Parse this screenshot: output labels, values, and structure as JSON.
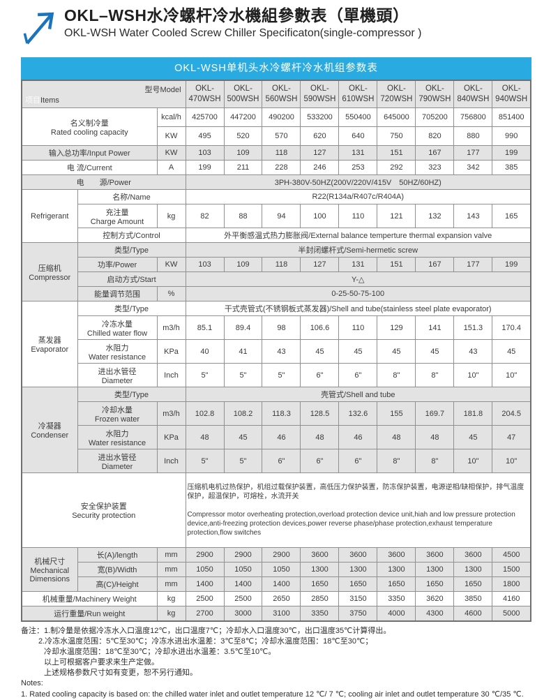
{
  "page": {
    "title_zh": "OKL–WSH水冷螺杆冷水機組參數表（單機頭）",
    "title_en": "OKL-WSH Water Cooled Screw Chiller Specificaton(single-compressor )"
  },
  "banner": {
    "text": "OKL-WSH单机头水冷螺杆冷水机组参数表"
  },
  "colors": {
    "banner_blue": "#29abe2",
    "arrow_blue": "#1b75bc",
    "band_gray": "#e3e3e3",
    "border_gray": "#8f8f8f"
  },
  "icons": {
    "header_icon": "arrow-up-right-icon"
  },
  "table": {
    "corner": {
      "items_zh": "项目",
      "items_en": "Items",
      "model": "型号Model"
    },
    "models": [
      "OKL-\n470WSH",
      "OKL-\n500WSH",
      "OKL-\n560WSH",
      "OKL-\n590WSH",
      "OKL-\n610WSH",
      "OKL-\n720WSH",
      "OKL-\n790WSH",
      "OKL-\n840WSH",
      "OKL-\n940WSH"
    ],
    "rated": {
      "label": "名义制冷量\nRated cooling capacity",
      "unit1": "kcal/h",
      "unit2": "KW",
      "kcal": [
        "425700",
        "447200",
        "490200",
        "533200",
        "550400",
        "645000",
        "705200",
        "756800",
        "851400"
      ],
      "kw": [
        "495",
        "520",
        "570",
        "620",
        "640",
        "750",
        "820",
        "880",
        "990"
      ]
    },
    "input_power": {
      "label": "输入总功率/Input Power",
      "unit": "KW",
      "values": [
        "103",
        "109",
        "118",
        "127",
        "131",
        "151",
        "167",
        "177",
        "199"
      ]
    },
    "current": {
      "label": "电  流/Current",
      "unit": "A",
      "values": [
        "199",
        "211",
        "228",
        "246",
        "253",
        "292",
        "323",
        "342",
        "385"
      ]
    },
    "power_supply": {
      "label": "电　　源/Power",
      "value": "3PH-380V-50HZ(200V/220V/415V　50HZ/60HZ)"
    },
    "refrigerant": {
      "group": "Refrigerant",
      "name": {
        "label": "名称/Name",
        "value": "R22(R134a/R407c/R404A)"
      },
      "charge": {
        "label": "充注量\nCharge Amount",
        "unit": "kg",
        "values": [
          "82",
          "88",
          "94",
          "100",
          "110",
          "121",
          "132",
          "143",
          "165"
        ]
      },
      "control": {
        "label": "控制方式/Control",
        "value": "外平衡感温式热力膨胀阀/External balance temperture thermal expansion valve"
      }
    },
    "compressor": {
      "group": "压缩机\nCompressor",
      "type": {
        "label": "类型/Type",
        "value": "半封闭螺杆式/Semi-hermetic screw"
      },
      "power": {
        "label": "功率/Power",
        "unit": "KW",
        "values": [
          "103",
          "109",
          "118",
          "127",
          "131",
          "151",
          "167",
          "177",
          "199"
        ]
      },
      "start": {
        "label": "启动方式/Start",
        "value": "Y-△"
      },
      "energy": {
        "label": "能量调节范围",
        "unit": "%",
        "value": "0-25-50-75-100"
      }
    },
    "evaporator": {
      "group": "蒸发器\nEvaporator",
      "type": {
        "label": "类型/Type",
        "value": "干式壳管式(不锈钢板式蒸发器)/Shell and tube(stainless steel plate evaporator)"
      },
      "flow": {
        "label": "冷冻水量\nChilled water flow",
        "unit": "m3/h",
        "values": [
          "85.1",
          "89.4",
          "98",
          "106.6",
          "110",
          "129",
          "141",
          "151.3",
          "170.4"
        ]
      },
      "resistance": {
        "label": "水阻力\nWater resistance",
        "unit": "KPa",
        "values": [
          "40",
          "41",
          "43",
          "45",
          "45",
          "45",
          "45",
          "43",
          "45"
        ]
      },
      "diameter": {
        "label": "进出水管径\nDiameter",
        "unit": "Inch",
        "values": [
          "5\"",
          "5\"",
          "5\"",
          "6\"",
          "6\"",
          "8\"",
          "8\"",
          "10\"",
          "10\""
        ]
      }
    },
    "condenser": {
      "group": "冷凝器\nCondenser",
      "type": {
        "label": "类型/Type",
        "value": "壳管式/Shell and tube"
      },
      "flow": {
        "label": "冷却水量\nFrozen water",
        "unit": "m3/h",
        "values": [
          "102.8",
          "108.2",
          "118.3",
          "128.5",
          "132.6",
          "155",
          "169.7",
          "181.8",
          "204.5"
        ]
      },
      "resistance": {
        "label": "水阻力\nWater resistance",
        "unit": "KPa",
        "values": [
          "48",
          "45",
          "46",
          "48",
          "46",
          "48",
          "48",
          "45",
          "47"
        ]
      },
      "diameter": {
        "label": "进出水管径\nDiameter",
        "unit": "Inch",
        "values": [
          "5\"",
          "5\"",
          "6\"",
          "6\"",
          "6\"",
          "8\"",
          "8\"",
          "10\"",
          "10\""
        ]
      }
    },
    "security": {
      "label": "安全保护装置\nSecurity protection",
      "value_zh": "压缩机电机过热保护，机组过载保护装置，高低压力保护装置，防冻保护装置，电源逆相/缺相保护，排气温度保护，超温保护，可熔栓，水流开关",
      "value_en": "Compressor motor overheating protection,overload protection device unit,hiah and low pressure protection device,anti-freezing protection devices,power reverse phase/phase protection,exhaust temperature protection,flow switches"
    },
    "dimensions": {
      "group": "机械尺寸\nMechanical\nDimensions",
      "length": {
        "label": "长(A)/length",
        "unit": "mm",
        "values": [
          "2900",
          "2900",
          "2900",
          "3600",
          "3600",
          "3600",
          "3600",
          "3600",
          "4500"
        ]
      },
      "width": {
        "label": "宽(B)/Width",
        "unit": "mm",
        "values": [
          "1050",
          "1050",
          "1050",
          "1300",
          "1300",
          "1300",
          "1300",
          "1300",
          "1500"
        ]
      },
      "height": {
        "label": "高(C)/Height",
        "unit": "mm",
        "values": [
          "1400",
          "1400",
          "1400",
          "1650",
          "1650",
          "1650",
          "1650",
          "1650",
          "1800"
        ]
      }
    },
    "machine_weight": {
      "label": "机械重量/Machinery Weight",
      "unit": "kg",
      "values": [
        "2500",
        "2500",
        "2650",
        "2850",
        "3150",
        "3350",
        "3620",
        "3850",
        "4160"
      ]
    },
    "run_weight": {
      "label": "运行重量/Run weight",
      "unit": "kg",
      "values": [
        "2700",
        "3000",
        "3100",
        "3350",
        "3750",
        "4000",
        "4300",
        "4600",
        "5000"
      ]
    }
  },
  "notes": {
    "lines_zh": [
      "备注：1.制冷量是依据冷冻水入口温度12℃，出口温度7℃；冷却水入口温度30℃，出口温度35℃计算得出。",
      "2.冷冻水温度范围：5℃至30℃；冷冻水进出水温差：3℃至8℃；冷却水温度范围：18℃至30℃；",
      "冷却水温度范围：18℃至30℃；冷却水进出水温差：3.5℃至10℃。",
      "以上可根据客户要求来生产定做。",
      "上述规格参数尺寸如有变更，恕不另行通知。"
    ],
    "en_title": "Notes:",
    "en_line1": "1. Rated cooling capacity is based on: the chilled water inlet and outlet temperature 12 ℃/ 7 ℃; cooling air inlet and outlet temperature 30 ℃/35 ℃."
  }
}
